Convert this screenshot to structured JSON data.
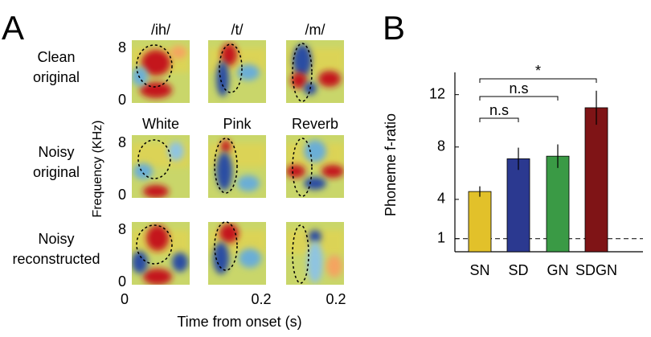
{
  "panel_a": {
    "label": "A",
    "columns": [
      "/ih/",
      "/t/",
      "/m/"
    ],
    "noise_labels": [
      "White",
      "Pink",
      "Reverb"
    ],
    "rows": [
      [
        "Clean",
        "original"
      ],
      [
        "Noisy",
        "original"
      ],
      [
        "Noisy",
        "reconstructed"
      ]
    ],
    "row_ticks": [
      [
        "8",
        "0"
      ],
      [
        "8",
        "0"
      ],
      [
        "8",
        "0"
      ]
    ],
    "y_label": "Frequency (KHz)",
    "x_tick_labels": [
      "0",
      "0.2",
      "0.2"
    ],
    "x_label": "Time from onset (s)"
  },
  "panel_b": {
    "label": "B"
  },
  "chart_data": {
    "type": "bar",
    "y_label": "Phoneme f-ratio",
    "categories": [
      "SN",
      "SD",
      "GN",
      "SDGN"
    ],
    "values": [
      4.6,
      7.1,
      7.3,
      11.0
    ],
    "errors": [
      0.4,
      0.85,
      0.9,
      1.3
    ],
    "colors": [
      "#e2c12a",
      "#2b3990",
      "#3a9a45",
      "#7f1416"
    ],
    "ylim": [
      0,
      13.7
    ],
    "yticks": [
      1,
      4,
      8,
      12
    ],
    "reference_line": 1,
    "annotations": [
      {
        "label": "n.s",
        "from": 0,
        "to": 1
      },
      {
        "label": "n.s",
        "from": 0,
        "to": 2
      },
      {
        "label": "*",
        "from": 0,
        "to": 3
      }
    ]
  }
}
